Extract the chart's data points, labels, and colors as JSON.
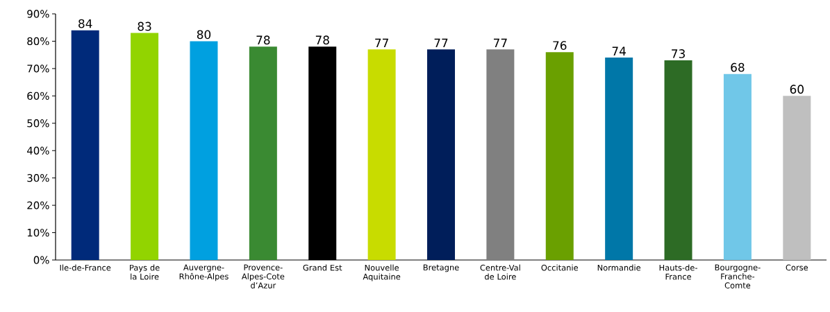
{
  "chart_data": {
    "type": "bar",
    "categories": [
      "Ile-de-France",
      "Pays de la Loire",
      "Auvergne-Rhône-Alpes",
      "Provence-Alpes-Cote d’Azur",
      "Grand Est",
      "Nouvelle Aquitaine",
      "Bretagne",
      "Centre-Val de Loire",
      "Occitanie",
      "Normandie",
      "Hauts-de-France",
      "Bourgogne-Franche-Comte",
      "Corse"
    ],
    "values": [
      84,
      83,
      80,
      78,
      78,
      77,
      77,
      77,
      76,
      74,
      73,
      68,
      60
    ],
    "colors": [
      "#002a7a",
      "#92d400",
      "#00a0e0",
      "#3a8a32",
      "#000000",
      "#c8dc00",
      "#001e5a",
      "#808080",
      "#6aa000",
      "#0077a8",
      "#2d6b25",
      "#70c7e8",
      "#bfbfbf"
    ],
    "ylim": [
      0,
      90
    ],
    "yticks": [
      {
        "value": 0,
        "label": "0%"
      },
      {
        "value": 10,
        "label": "10%"
      },
      {
        "value": 20,
        "label": "20%"
      },
      {
        "value": 30,
        "label": "30%"
      },
      {
        "value": 40,
        "label": "40%"
      },
      {
        "value": 50,
        "label": "50%"
      },
      {
        "value": 60,
        "label": "60%"
      },
      {
        "value": 70,
        "label": "70%"
      },
      {
        "value": 80,
        "label": "80%"
      },
      {
        "value": 90,
        "label": "90%"
      }
    ],
    "data_labels": true
  }
}
